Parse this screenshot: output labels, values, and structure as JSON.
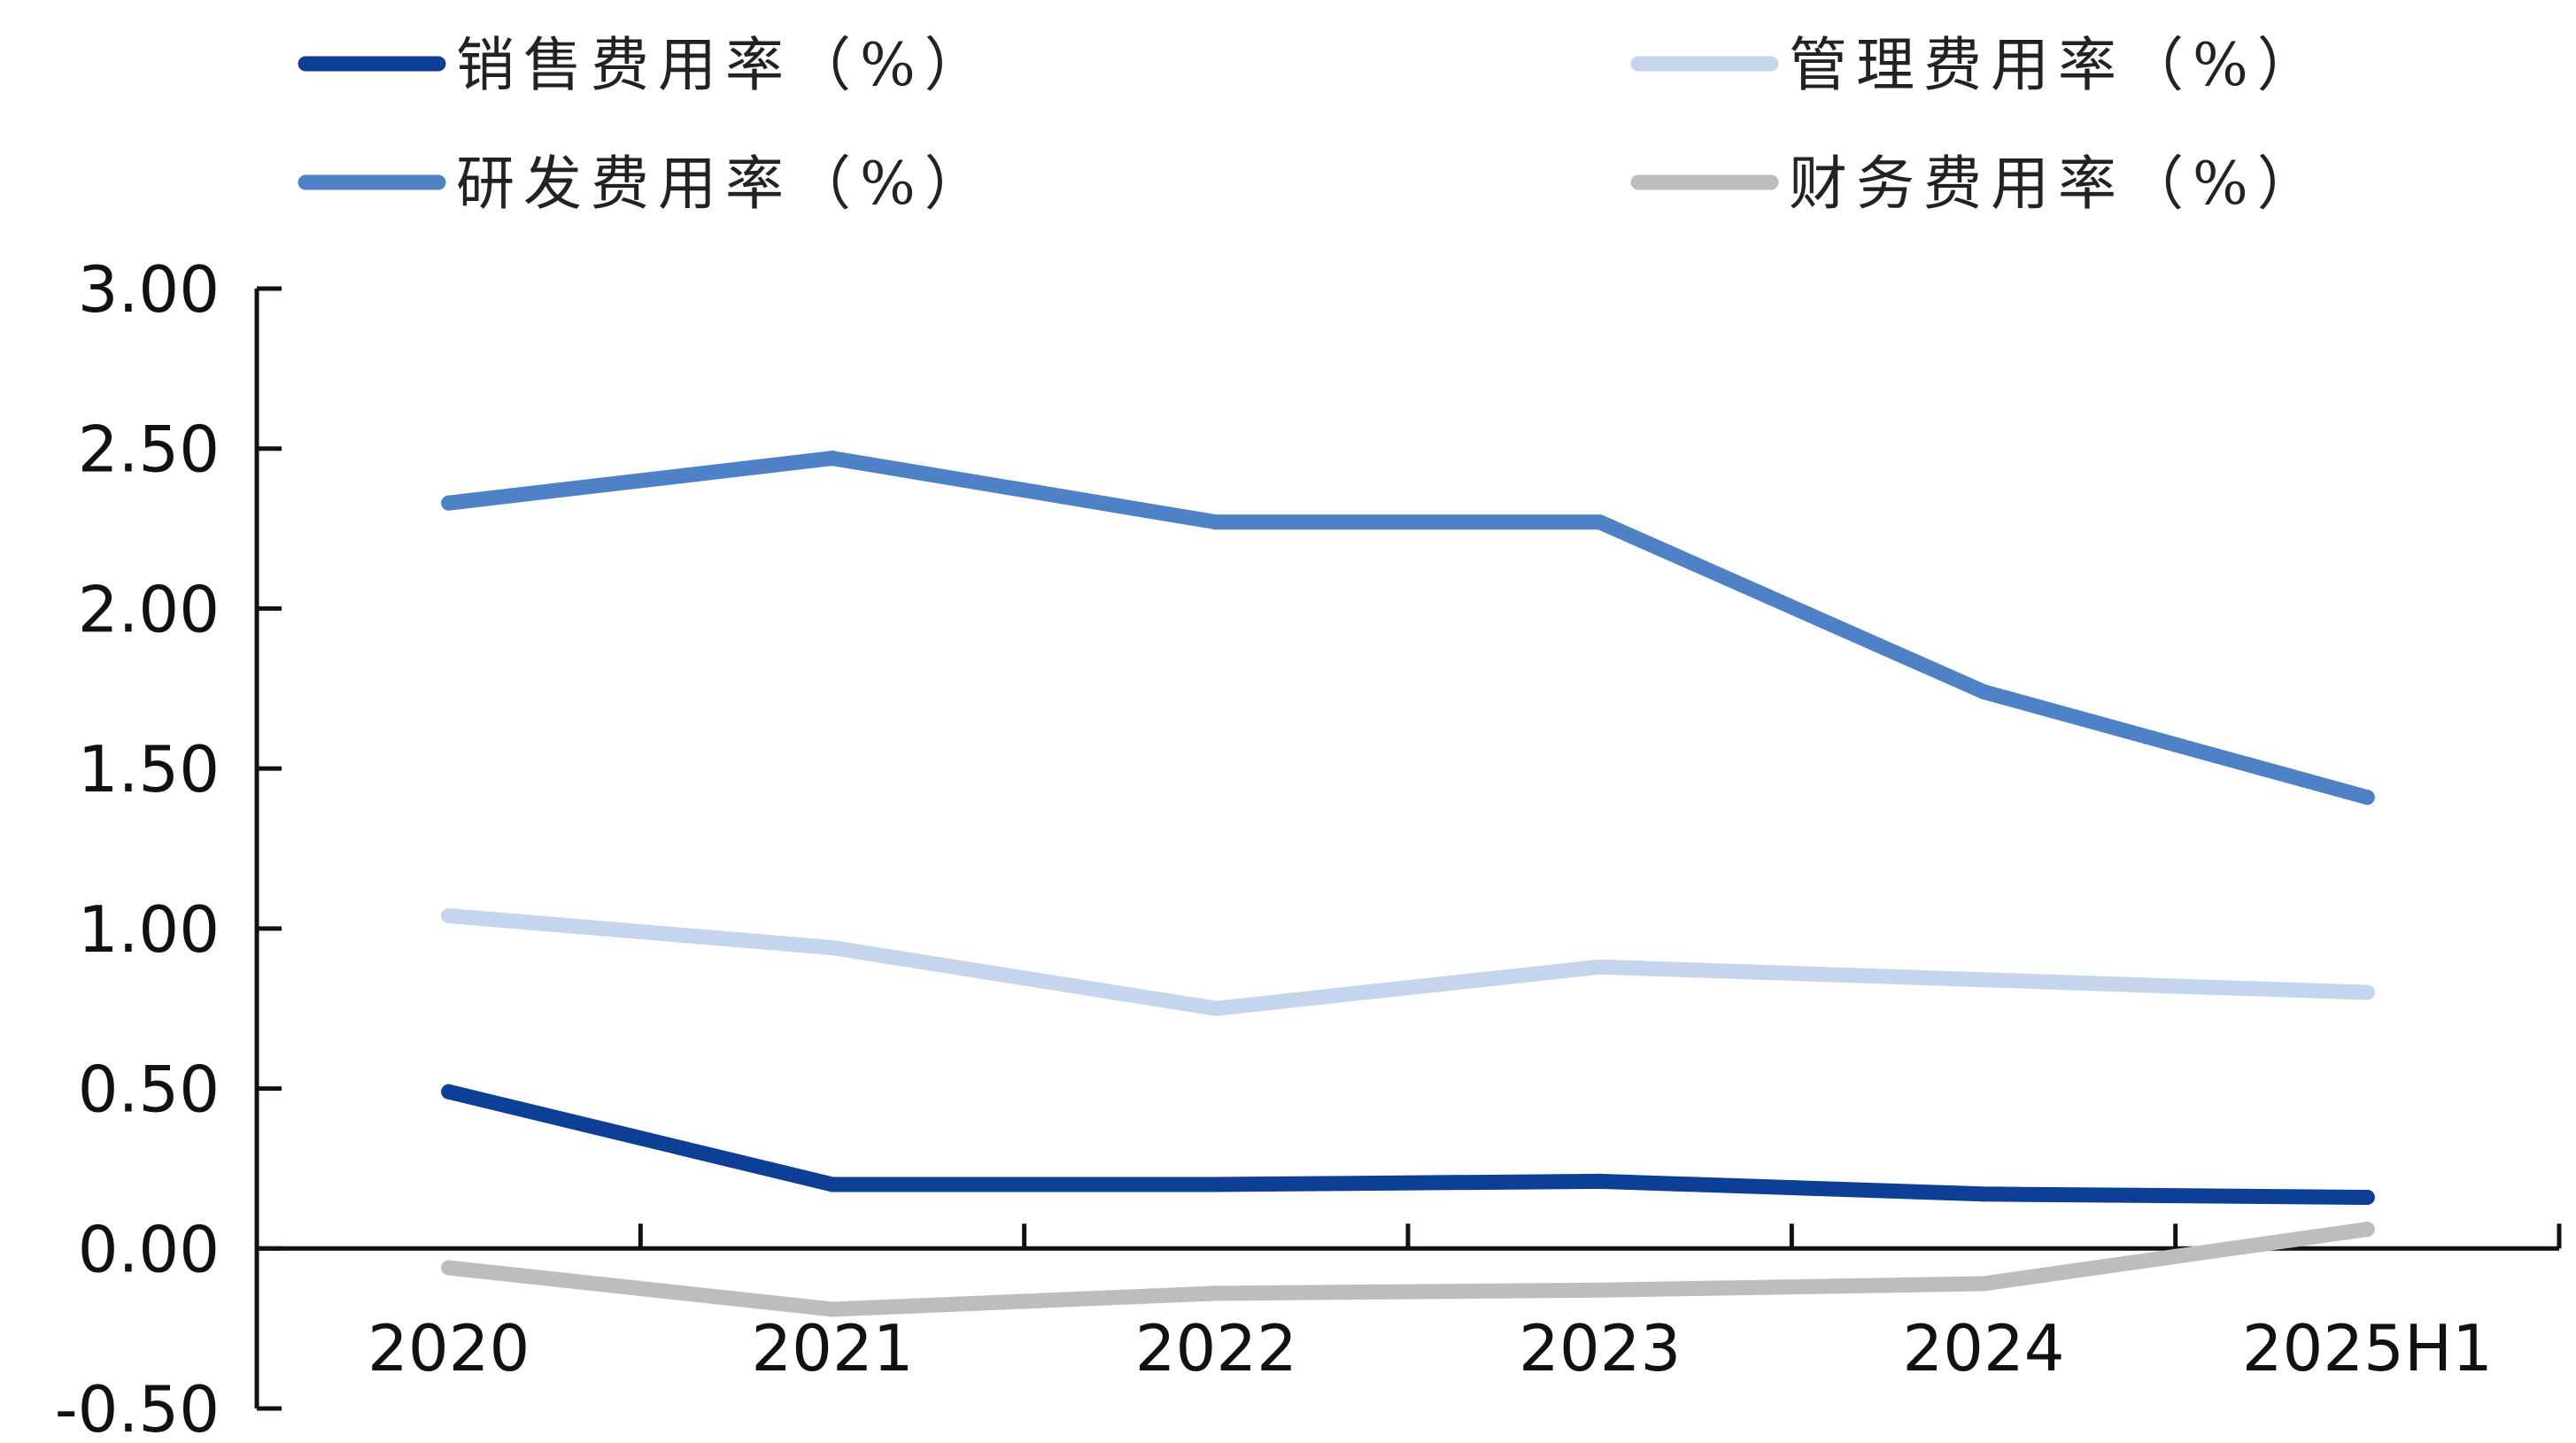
{
  "chart_data": {
    "type": "line",
    "title": "",
    "xlabel": "",
    "ylabel": "",
    "categories": [
      "2020",
      "2021",
      "2022",
      "2023",
      "2024",
      "2025H1"
    ],
    "ylim": [
      -0.5,
      3.0
    ],
    "yticks": [
      "3.00",
      "2.50",
      "2.00",
      "1.50",
      "1.00",
      "0.50",
      "0.00",
      "-0.50"
    ],
    "ytick_values": [
      3.0,
      2.5,
      2.0,
      1.5,
      1.0,
      0.5,
      0.0,
      -0.5
    ],
    "grid": false,
    "legend_position": "top",
    "series": [
      {
        "name": "销售费用率（%）",
        "color": "#0c3f95",
        "values": [
          0.49,
          0.2,
          0.2,
          0.21,
          0.17,
          0.16
        ]
      },
      {
        "name": "管理费用率（%）",
        "color": "#c5d5ee",
        "values": [
          1.04,
          0.94,
          0.75,
          0.88,
          0.84,
          0.8
        ]
      },
      {
        "name": "研发费用率（%）",
        "color": "#4f81c7",
        "values": [
          2.33,
          2.47,
          2.27,
          2.27,
          1.74,
          1.41
        ]
      },
      {
        "name": "财务费用率（%）",
        "color": "#bdbdbd",
        "values": [
          -0.06,
          -0.19,
          -0.14,
          -0.13,
          -0.11,
          0.06
        ]
      }
    ]
  }
}
